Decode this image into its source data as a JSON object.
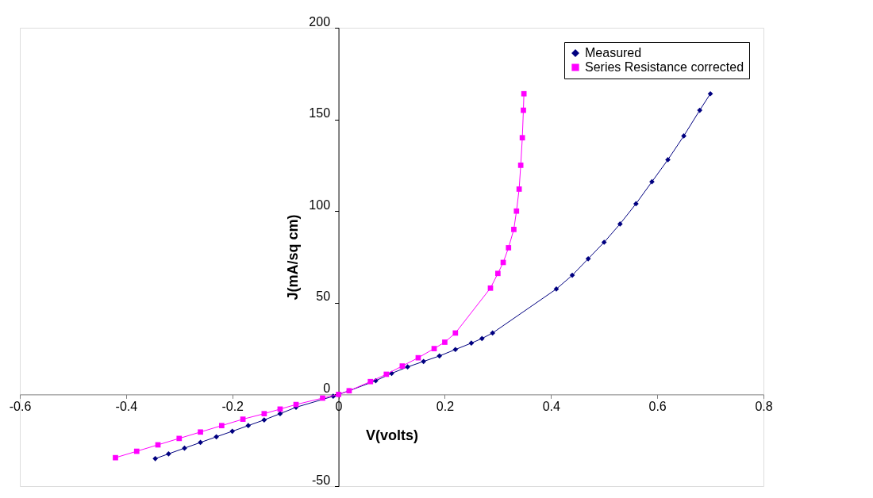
{
  "chart_data": {
    "type": "line",
    "xlabel": "V(volts)",
    "ylabel": "J(mA/sq cm)",
    "xlim": [
      -0.6,
      0.8
    ],
    "xticks": [
      -0.6,
      -0.4,
      -0.2,
      0,
      0.2,
      0.4,
      0.6,
      0.8
    ],
    "ylim": [
      -50,
      200
    ],
    "yticks": [
      -50,
      0,
      50,
      100,
      150,
      200
    ],
    "grid": false,
    "legend": "top right",
    "line_style": "solid",
    "series": [
      {
        "name": "Measured",
        "color": "#000080",
        "marker": "diamond",
        "x": [
          -0.345,
          -0.32,
          -0.29,
          -0.26,
          -0.23,
          -0.2,
          -0.17,
          -0.14,
          -0.11,
          -0.08,
          -0.01,
          0.02,
          0.07,
          0.1,
          0.13,
          0.16,
          0.19,
          0.22,
          0.25,
          0.27,
          0.29,
          0.41,
          0.44,
          0.47,
          0.5,
          0.53,
          0.56,
          0.59,
          0.62,
          0.65,
          0.68,
          0.7
        ],
        "values": [
          -35,
          -32.4,
          -29.3,
          -26.2,
          -23.1,
          -20.1,
          -17,
          -13.9,
          -10.5,
          -7,
          -1,
          2,
          7.5,
          11.5,
          15,
          18,
          21,
          24.5,
          28,
          30.5,
          33.5,
          57.5,
          65,
          74,
          83,
          93,
          104,
          116,
          128,
          141,
          155,
          164
        ]
      },
      {
        "name": "Series Resistance corrected",
        "color": "#ff00ff",
        "marker": "square",
        "x": [
          -0.42,
          -0.38,
          -0.34,
          -0.3,
          -0.26,
          -0.22,
          -0.18,
          -0.14,
          -0.11,
          -0.08,
          -0.03,
          0,
          0.02,
          0.06,
          0.09,
          0.12,
          0.15,
          0.18,
          0.2,
          0.22,
          0.286,
          0.3,
          0.31,
          0.32,
          0.33,
          0.335,
          0.34,
          0.343,
          0.346,
          0.348,
          0.349
        ],
        "values": [
          -34.5,
          -31,
          -27.5,
          -24,
          -20.5,
          -17,
          -13.5,
          -10.5,
          -8,
          -5.5,
          -2,
          0,
          2,
          7,
          11,
          15.5,
          20,
          25,
          28.5,
          33.5,
          58,
          66,
          72,
          80,
          90,
          100,
          112,
          125,
          140,
          155,
          164
        ]
      }
    ]
  }
}
